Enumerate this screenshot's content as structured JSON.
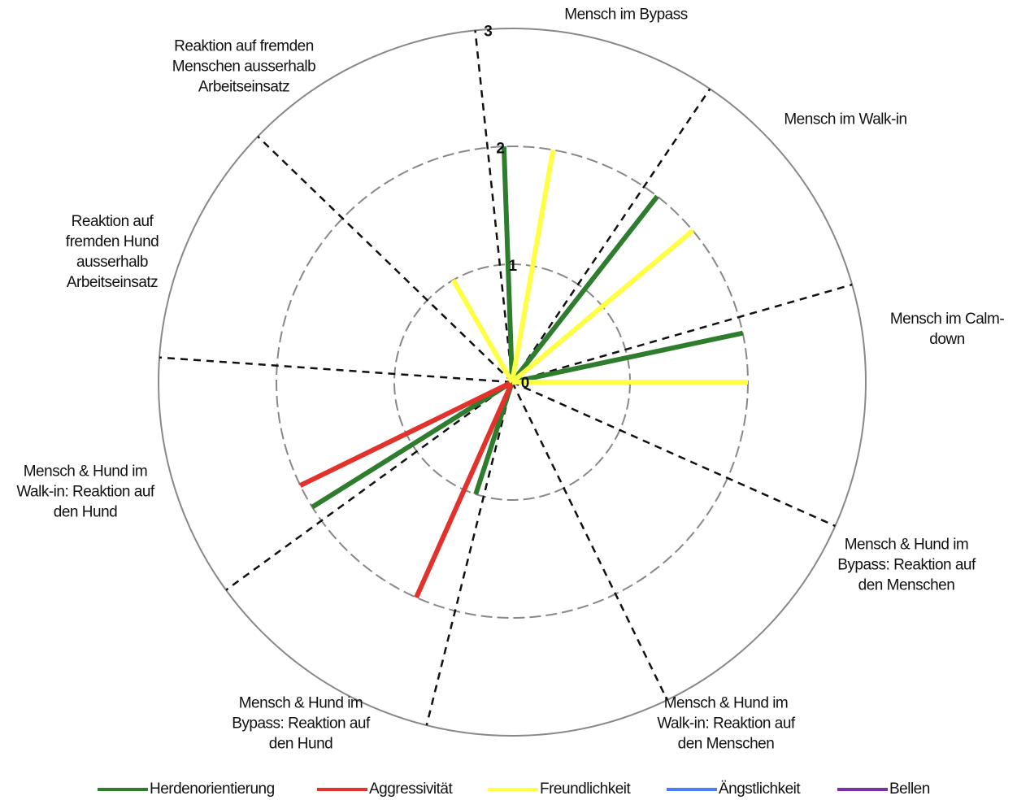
{
  "chart_data": {
    "type": "polar-bar",
    "categories": [
      "Mensch im Bypass",
      "Mensch im Walk-in",
      "Mensch im Calm-down",
      "Mensch & Hund im Bypass: Reaktion auf den Menschen",
      "Mensch & Hund im Walk-in: Reaktion auf den Menschen",
      "Mensch & Hund im Bypass: Reaktion auf den Hund",
      "Mensch & Hund im Walk-in: Reaktion auf den Hund",
      "Reaktion auf fremden Hund ausserhalb Arbeitseinsatz",
      "Reaktion auf fremden Menschen ausserhalb Arbeitseinsatz"
    ],
    "series": [
      {
        "name": "Herdenorientierung",
        "color": "#2e7d2e",
        "values": [
          2,
          2,
          2,
          0,
          0,
          1,
          2,
          0,
          0
        ]
      },
      {
        "name": "Aggressivität",
        "color": "#e3312b",
        "values": [
          0,
          0,
          0,
          0,
          0,
          2,
          2,
          0,
          0
        ]
      },
      {
        "name": "Freundlichkeit",
        "color": "#ffff44",
        "values": [
          2,
          2,
          2,
          0,
          0,
          0,
          0,
          0,
          1
        ]
      },
      {
        "name": "Ängstlichkeit",
        "color": "#4a7cff",
        "values": [
          0,
          0,
          0,
          0,
          0,
          0,
          0,
          0,
          0
        ]
      },
      {
        "name": "Bellen",
        "color": "#7a2fa8",
        "values": [
          0,
          0,
          0,
          0,
          0,
          0,
          0,
          0,
          0
        ]
      }
    ],
    "rlim": [
      0,
      3
    ],
    "rticks": [
      0,
      1,
      2,
      3
    ]
  }
}
